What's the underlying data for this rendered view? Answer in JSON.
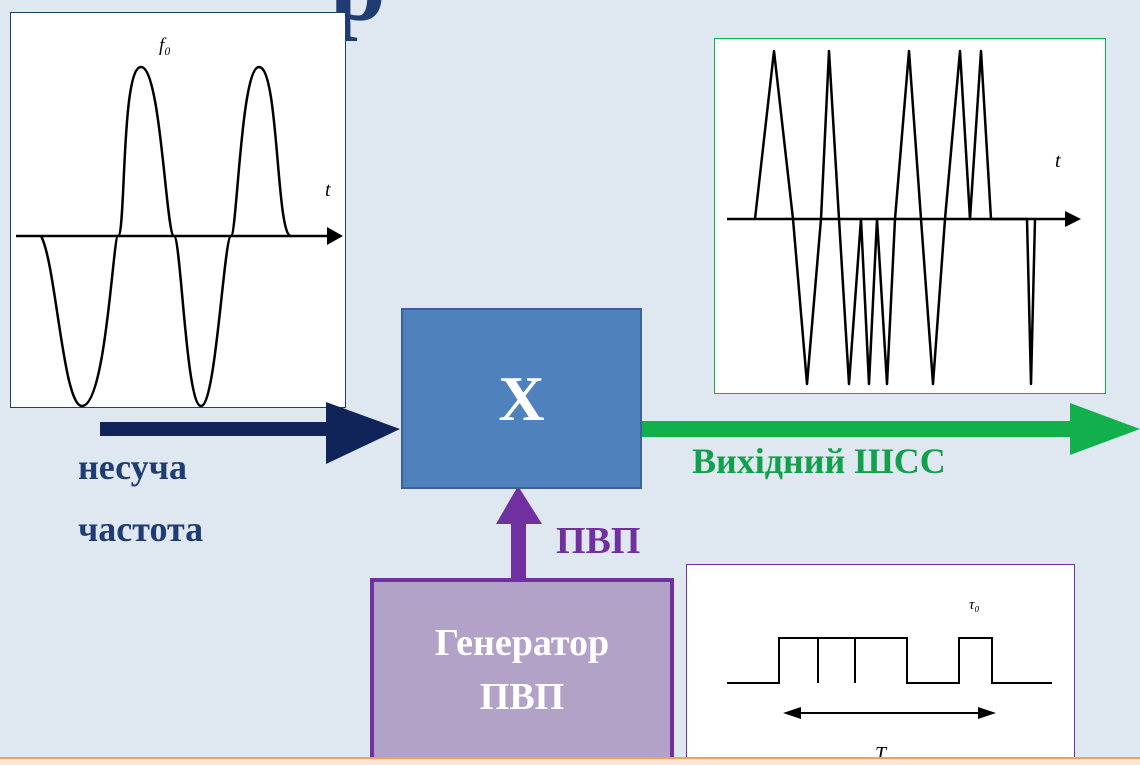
{
  "title_fragment": "р",
  "carrier": {
    "signal_label": "f₀",
    "axis_label": "t",
    "caption_line1": "несуча",
    "caption_line2": "частота"
  },
  "mixer": {
    "symbol": "X"
  },
  "output": {
    "axis_label": "t",
    "caption": "Вихідний ШСС"
  },
  "sequence": {
    "arrow_label": "ПВП",
    "generator_line1": "Генератор",
    "generator_line2": "ПВП",
    "pulse_label": "τ₀",
    "period_label": "T"
  },
  "colors": {
    "background": "#dfe7f1",
    "mixer_fill": "#4f81bd",
    "mixer_border": "#3a6393",
    "carrier_arrow": "#10245a",
    "output_arrow": "#12b04c",
    "sequence_arrow": "#7030a0",
    "generator_fill": "#b2a2c7",
    "generator_border": "#7030a0",
    "label_dark_blue": "#1f3d73",
    "label_green": "#12a04a"
  }
}
